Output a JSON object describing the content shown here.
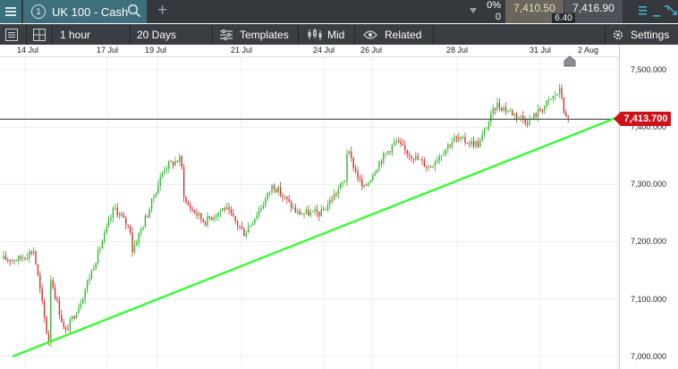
{
  "topbar": {
    "tab_number": "1",
    "instrument": "UK 100 - Cash",
    "change_pct": "0%",
    "change_value": "0",
    "sell_price": "7,410.50",
    "buy_price": "7,416.90",
    "spread": "6.40"
  },
  "toolbar": {
    "interval": "1 hour",
    "range": "20 Days",
    "templates": "Templates",
    "price_type": "Mid",
    "related": "Related",
    "settings": "Settings"
  },
  "date_axis": [
    "14 Jul",
    "17 Jul",
    "19 Jul",
    "21 Jul",
    "24 Jul",
    "26 Jul",
    "28 Jul",
    "31 Jul",
    "2 Aug"
  ],
  "price_axis": [
    "7,500.000",
    "7,400.000",
    "7,300.000",
    "7,200.000",
    "7,100.000",
    "7,000.000"
  ],
  "current_price": "7,413.700",
  "colors": {
    "up": "#2eb82e",
    "down": "#d32f2f",
    "trendline": "#33ff33",
    "current_price_bg": "#d10f17"
  },
  "chart_data": {
    "type": "candlestick",
    "instrument": "UK 100 - Cash",
    "interval": "1 hour",
    "ylim": [
      6995,
      7540
    ],
    "y_ticks": [
      7000,
      7100,
      7200,
      7300,
      7400,
      7500
    ],
    "current_price": 7413.7,
    "trendline": {
      "from": [
        "14 Jul",
        7000
      ],
      "to": [
        "2 Aug",
        7418
      ]
    },
    "approx_path": [
      [
        "14 Jul",
        7170
      ],
      [
        "14 Jul",
        7185
      ],
      [
        "14 Jul",
        7150
      ],
      [
        "17 Jul",
        7020
      ],
      [
        "17 Jul",
        7040
      ],
      [
        "17 Jul",
        7100
      ],
      [
        "17 Jul",
        7180
      ],
      [
        "17 Jul",
        7260
      ],
      [
        "17 Jul",
        7220
      ],
      [
        "19 Jul",
        7180
      ],
      [
        "19 Jul",
        7250
      ],
      [
        "19 Jul",
        7330
      ],
      [
        "19 Jul",
        7345
      ],
      [
        "21 Jul",
        7270
      ],
      [
        "21 Jul",
        7235
      ],
      [
        "21 Jul",
        7260
      ],
      [
        "21 Jul",
        7215
      ],
      [
        "21 Jul",
        7270
      ],
      [
        "24 Jul",
        7300
      ],
      [
        "24 Jul",
        7250
      ],
      [
        "24 Jul",
        7250
      ],
      [
        "24 Jul",
        7310
      ],
      [
        "26 Jul",
        7360
      ],
      [
        "26 Jul",
        7290
      ],
      [
        "26 Jul",
        7340
      ],
      [
        "26 Jul",
        7375
      ],
      [
        "28 Jul",
        7360
      ],
      [
        "28 Jul",
        7330
      ],
      [
        "28 Jul",
        7380
      ],
      [
        "28 Jul",
        7370
      ],
      [
        "31 Jul",
        7440
      ],
      [
        "31 Jul",
        7410
      ],
      [
        "31 Jul",
        7465
      ],
      [
        "2 Aug",
        7413.7
      ]
    ]
  }
}
